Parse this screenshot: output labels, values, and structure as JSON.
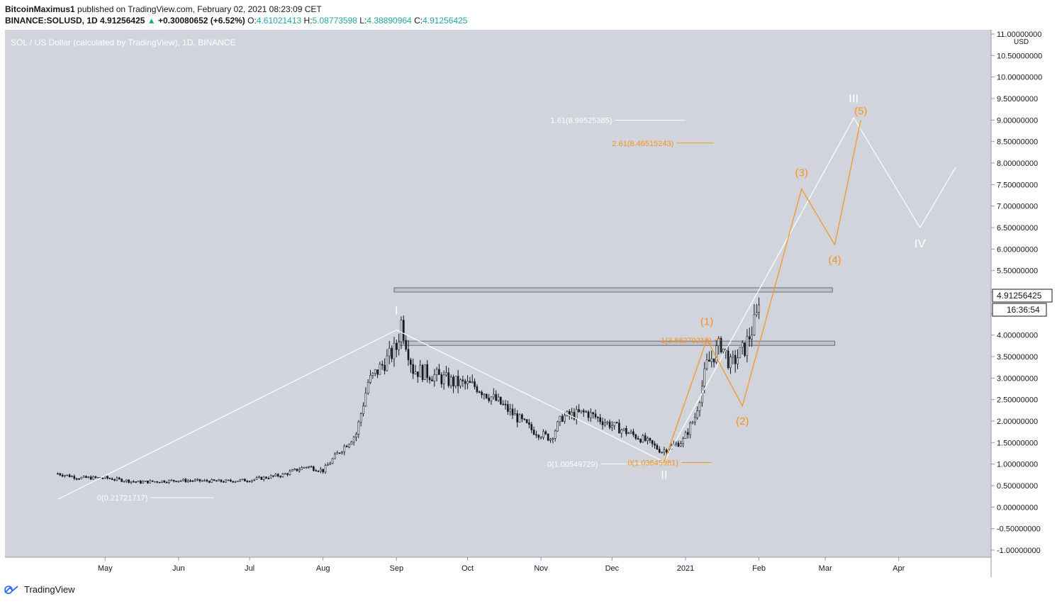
{
  "header": {
    "author": "BitcoinMaximus1",
    "published_text": "published on TradingView.com, February 02, 2021 08:23:09 CET",
    "symbol": "BINANCE:SOLUSD, 1D",
    "last": "4.91256425",
    "change": "+0.30080652 (+6.52%)",
    "o_label": "O:",
    "o_value": "4.61021413",
    "h_label": "H:",
    "h_value": "5.08773598",
    "l_label": "L:",
    "l_value": "4.38890964",
    "c_label": "C:",
    "c_value": "4.91256425"
  },
  "chart_data": {
    "type": "candlestick",
    "title": "SOL / US Dollar (calculated by TradingView), 1D, BINANCE",
    "currency_label": "USD",
    "y_ticks": [
      "11.00000000",
      "10.50000000",
      "10.00000000",
      "9.50000000",
      "9.00000000",
      "8.50000000",
      "8.00000000",
      "7.50000000",
      "7.00000000",
      "6.50000000",
      "6.00000000",
      "5.50000000",
      "5.00000000",
      "4.50000000",
      "4.00000000",
      "3.50000000",
      "3.00000000",
      "2.50000000",
      "2.00000000",
      "1.50000000",
      "1.00000000",
      "0.50000000",
      "0.00000000",
      "-0.50000000",
      "-1.00000000"
    ],
    "y_range": [
      -1.0,
      11.0
    ],
    "x_labels": [
      "May",
      "Jun",
      "Jul",
      "Aug",
      "Sep",
      "Oct",
      "Nov",
      "Dec",
      "2021",
      "Feb",
      "Mar",
      "Apr"
    ],
    "last_price_label": "4.91256425",
    "countdown_label": "16:36:54",
    "price_path": [
      [
        "2020-04-11",
        0.78
      ],
      [
        "2020-04-20",
        0.68
      ],
      [
        "2020-05-01",
        0.68
      ],
      [
        "2020-05-15",
        0.58
      ],
      [
        "2020-06-01",
        0.62
      ],
      [
        "2020-06-20",
        0.6
      ],
      [
        "2020-07-01",
        0.63
      ],
      [
        "2020-07-15",
        0.75
      ],
      [
        "2020-07-25",
        0.95
      ],
      [
        "2020-08-01",
        0.85
      ],
      [
        "2020-08-08",
        1.3
      ],
      [
        "2020-08-15",
        1.7
      ],
      [
        "2020-08-20",
        2.9
      ],
      [
        "2020-08-26",
        3.3
      ],
      [
        "2020-09-01",
        3.7
      ],
      [
        "2020-09-03",
        4.3
      ],
      [
        "2020-09-08",
        3.2
      ],
      [
        "2020-09-15",
        3.1
      ],
      [
        "2020-09-25",
        2.9
      ],
      [
        "2020-10-05",
        2.8
      ],
      [
        "2020-10-15",
        2.4
      ],
      [
        "2020-10-28",
        1.8
      ],
      [
        "2020-11-05",
        1.6
      ],
      [
        "2020-11-10",
        2.1
      ],
      [
        "2020-11-20",
        2.2
      ],
      [
        "2020-12-01",
        1.9
      ],
      [
        "2020-12-15",
        1.55
      ],
      [
        "2020-12-22",
        1.3
      ],
      [
        "2020-12-31",
        1.55
      ],
      [
        "2021-01-05",
        2.1
      ],
      [
        "2021-01-10",
        3.3
      ],
      [
        "2021-01-16",
        3.8
      ],
      [
        "2021-01-20",
        3.3
      ],
      [
        "2021-01-26",
        3.7
      ],
      [
        "2021-01-31",
        4.4
      ],
      [
        "2021-02-01",
        4.91
      ]
    ],
    "wave_count": [
      {
        "label": "I",
        "date": "2020-09-01",
        "value": 4.12
      },
      {
        "label": "II",
        "date": "2020-12-23",
        "value": 1.05
      },
      {
        "label": "III",
        "date": "2021-03-13",
        "value": 9.05
      },
      {
        "label": "IV",
        "date": "2021-04-10",
        "value": 6.5
      },
      {
        "label": "(1)",
        "date": "2021-01-10",
        "value": 3.9
      },
      {
        "label": "(2)",
        "date": "2021-01-25",
        "value": 2.35
      },
      {
        "label": "(3)",
        "date": "2021-02-19",
        "value": 7.4
      },
      {
        "label": "(4)",
        "date": "2021-03-05",
        "value": 6.1
      },
      {
        "label": "(5)",
        "date": "2021-03-16",
        "value": 9.0
      }
    ],
    "white_wave_path": [
      [
        "2020-04-11",
        0.18
      ],
      [
        "2020-09-01",
        4.12
      ],
      [
        "2020-12-23",
        1.05
      ],
      [
        "2021-03-13",
        9.05
      ],
      [
        "2021-04-10",
        6.5
      ],
      [
        "2021-04-25",
        7.9
      ]
    ],
    "orange_wave_path": [
      [
        "2020-12-23",
        1.05
      ],
      [
        "2021-01-10",
        3.9
      ],
      [
        "2021-01-25",
        2.35
      ],
      [
        "2021-02-19",
        7.4
      ],
      [
        "2021-03-05",
        6.1
      ],
      [
        "2021-03-16",
        9.0
      ]
    ],
    "fib_levels": [
      {
        "text": "0(0.21721717)",
        "value": 0.217,
        "color": "#ffffff"
      },
      {
        "text": "0(1.00549729)",
        "value": 1.005,
        "color": "#ffffff"
      },
      {
        "text": "1.61(8.99525385)",
        "value": 8.995,
        "color": "#ffffff"
      },
      {
        "text": "0(1.03645981)",
        "value": 1.036,
        "color": "#f7931a"
      },
      {
        "text": "1(3.88270219)",
        "value": 3.883,
        "color": "#f7931a"
      },
      {
        "text": "2.61(8.46515243)",
        "value": 8.465,
        "color": "#f7931a"
      }
    ],
    "resistance_zones": [
      [
        5.0,
        5.1
      ],
      [
        3.76,
        3.86
      ]
    ]
  },
  "footer": {
    "brand": "TradingView"
  }
}
